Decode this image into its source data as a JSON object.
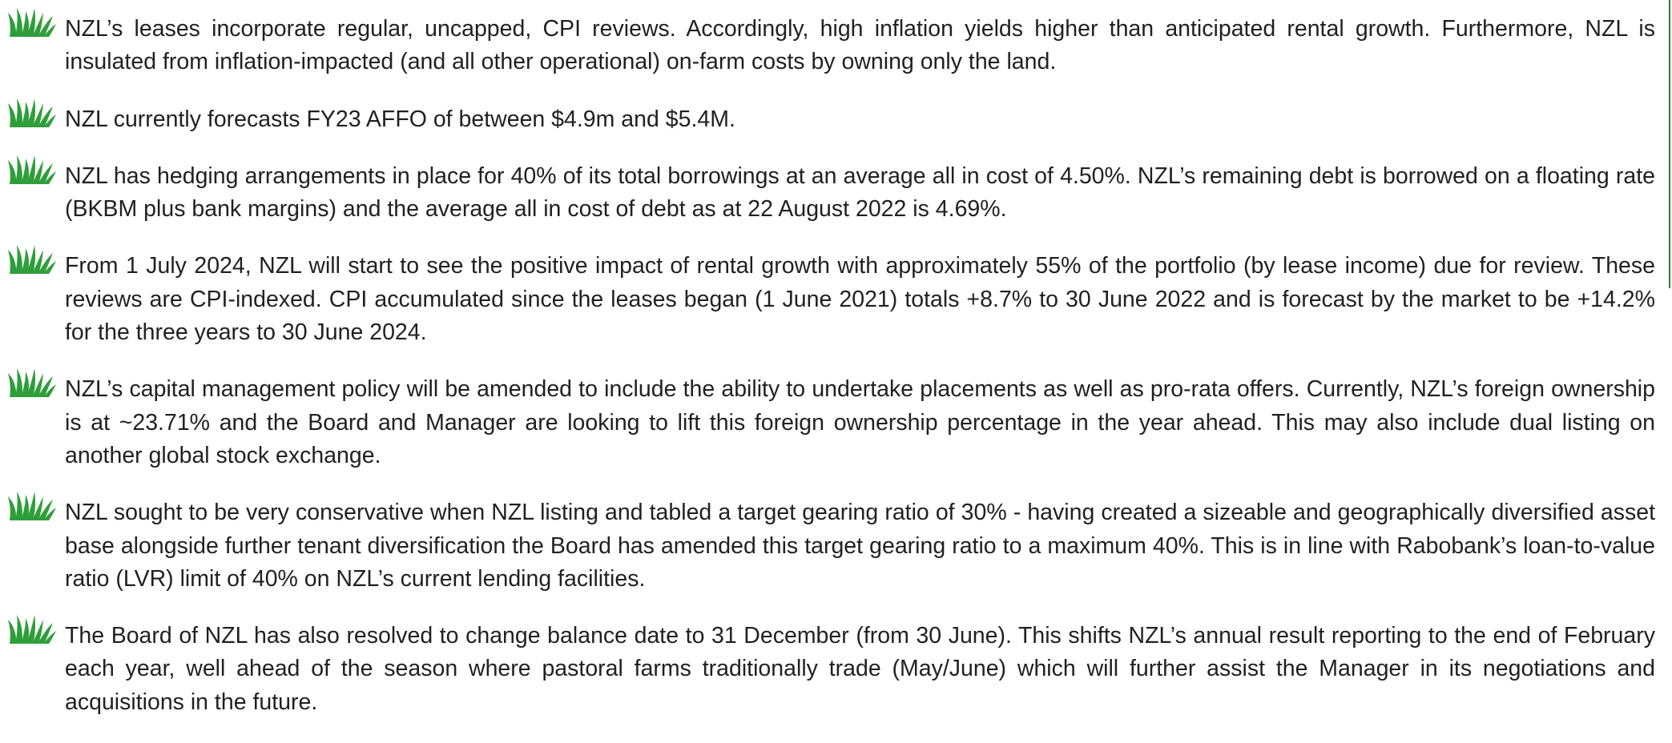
{
  "items": [
    "NZL’s leases incorporate regular, uncapped, CPI reviews. Accordingly, high inflation yields higher than anticipated rental growth. Furthermore, NZL is insulated from inflation-impacted (and all other operational) on-farm costs by owning only the land.",
    "NZL currently forecasts FY23 AFFO of between $4.9m and $5.4M.",
    "NZL has hedging arrangements in place for 40% of its total borrowings at an average all in cost of 4.50%. NZL’s remaining debt is borrowed on a floating rate (BKBM plus bank margins) and the average all in cost of debt as at 22 August 2022 is 4.69%.",
    "From 1 July 2024, NZL will start to see the positive impact of rental growth with approximately 55% of the portfolio (by lease income) due for review. These reviews are CPI-indexed. CPI accumulated since the leases began (1 June 2021) totals +8.7% to 30 June 2022 and is forecast by the market to be +14.2% for the three years to 30 June 2024.",
    "NZL’s capital management policy will be amended to include the ability to undertake placements as well as pro-rata offers. Currently, NZL’s foreign ownership is at ~23.71% and the Board and Manager are looking to lift this foreign ownership percentage in the year ahead. This may also include dual listing on another global stock exchange.",
    "NZL sought to be very conservative when NZL listing and tabled a target gearing ratio of 30% - having created a sizeable and geographically diversified asset base alongside further tenant diversification the Board has amended this target gearing ratio to a maximum 40%. This is in line with Rabobank’s loan-to-value ratio (LVR) limit of 40% on NZL’s current lending facilities.",
    "The Board of NZL has also resolved to change balance date to 31 December (from 30 June). This shifts NZL’s annual result reporting to the end of February each year, well ahead of the season where pastoral farms traditionally trade (May/June) which will further assist the Manager in its negotiations and acquisitions in the future."
  ]
}
